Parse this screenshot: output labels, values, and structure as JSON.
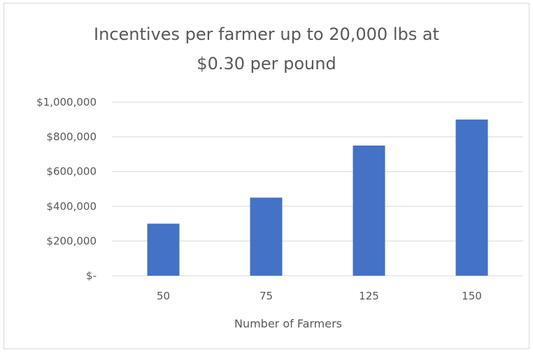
{
  "chart_data": {
    "type": "bar",
    "title_lines": [
      "Incentives per farmer up to 20,000 lbs at",
      "$0.30 per pound"
    ],
    "xlabel": "Number of Farmers",
    "ylabel": "",
    "categories": [
      "50",
      "75",
      "125",
      "150"
    ],
    "values": [
      300000,
      450000,
      750000,
      900000
    ],
    "ylim": [
      0,
      1000000
    ],
    "yticks": [
      0,
      200000,
      400000,
      600000,
      800000,
      1000000
    ],
    "ytick_labels": [
      "$-",
      "$200,000",
      "$400,000",
      "$600,000",
      "$800,000",
      "$1,000,000"
    ],
    "grid": true,
    "legend": "none",
    "colors": {
      "bar": "#4472c4",
      "grid": "#d9d9d9",
      "text": "#595959"
    }
  }
}
